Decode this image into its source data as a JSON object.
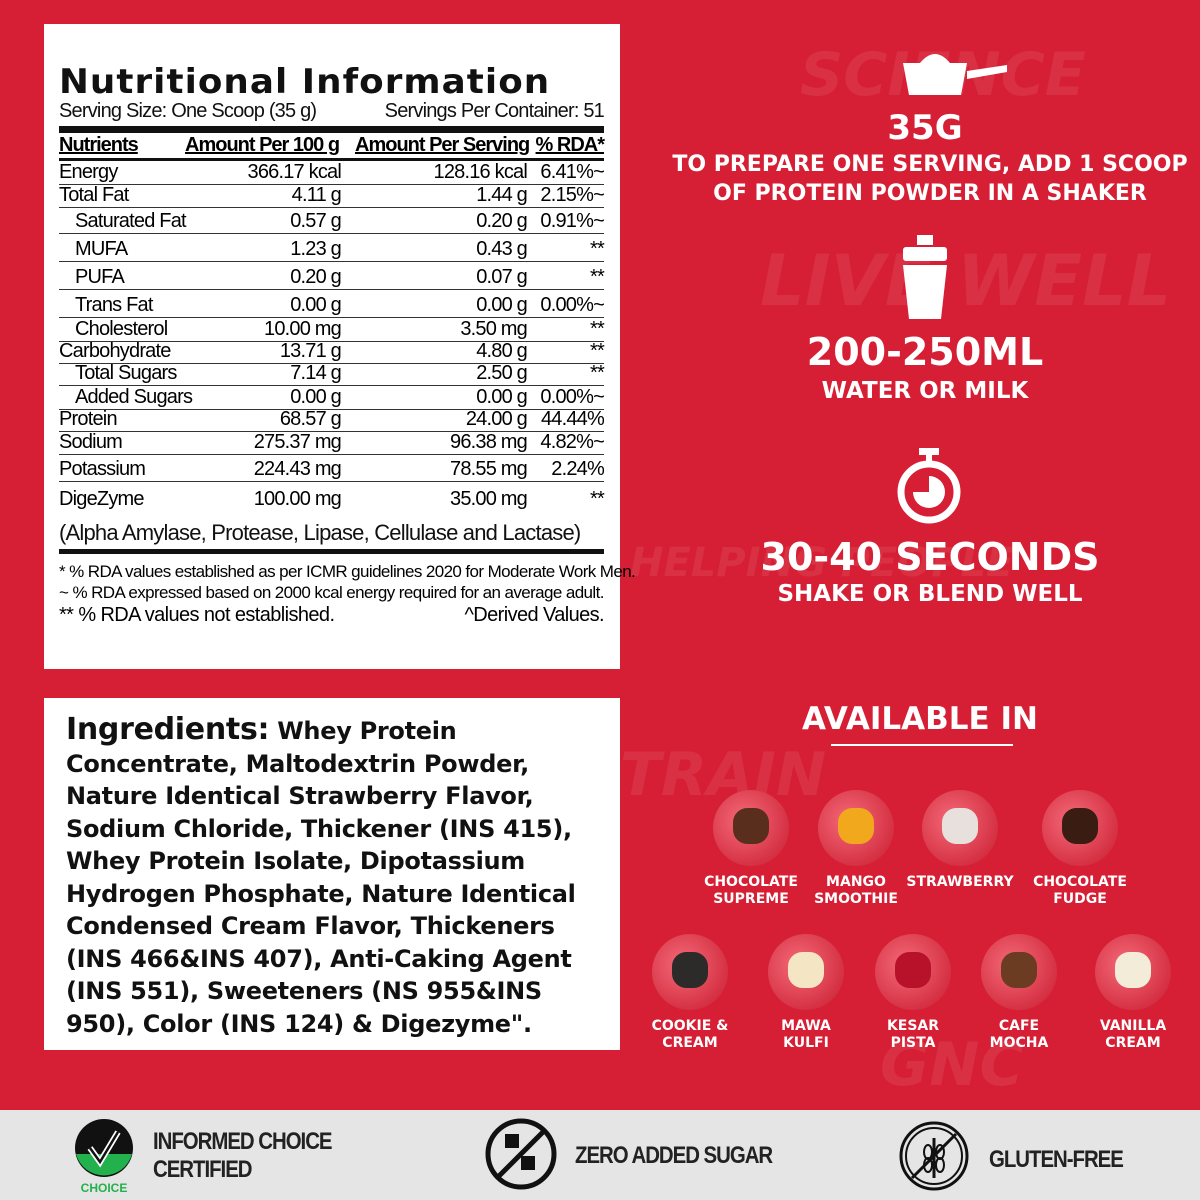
{
  "nutrition": {
    "title": "Nutritional Information",
    "serving_size": "Serving Size: One Scoop (35 g)",
    "servings_per_container": "Servings Per Container: 51",
    "headers": [
      "Nutrients",
      "Amount Per 100 g",
      "Amount Per Serving",
      "% RDA*"
    ],
    "rows": [
      {
        "name": "Energy",
        "per100": "366.17 kcal",
        "serving": "128.16 kcal",
        "rda": "6.41%~",
        "indent": false
      },
      {
        "name": "Total Fat",
        "per100": "4.11 g",
        "serving": "1.44 g",
        "rda": "2.15%~",
        "indent": false
      },
      {
        "name": "Saturated Fat",
        "per100": "0.57 g",
        "serving": "0.20 g",
        "rda": "0.91%~",
        "indent": true
      },
      {
        "name": "MUFA",
        "per100": "1.23 g",
        "serving": "0.43 g",
        "rda": "**",
        "indent": true
      },
      {
        "name": "PUFA",
        "per100": "0.20 g",
        "serving": "0.07 g",
        "rda": "**",
        "indent": true
      },
      {
        "name": "Trans Fat",
        "per100": "0.00 g",
        "serving": "0.00 g",
        "rda": "0.00%~",
        "indent": true
      },
      {
        "name": "Cholesterol",
        "per100": "10.00 mg",
        "serving": "3.50 mg",
        "rda": "**",
        "indent": true
      },
      {
        "name": "Carbohydrate",
        "per100": "13.71 g",
        "serving": "4.80 g",
        "rda": "**",
        "indent": false
      },
      {
        "name": "Total Sugars",
        "per100": "7.14 g",
        "serving": "2.50 g",
        "rda": "**",
        "indent": true
      },
      {
        "name": "Added Sugars",
        "per100": "0.00 g",
        "serving": "0.00 g",
        "rda": "0.00%~",
        "indent": true
      },
      {
        "name": "Protein",
        "per100": "68.57 g",
        "serving": "24.00 g",
        "rda": "44.44%",
        "indent": false
      },
      {
        "name": "Sodium",
        "per100": "275.37 mg",
        "serving": "96.38 mg",
        "rda": "4.82%~",
        "indent": false
      },
      {
        "name": "Potassium",
        "per100": "224.43 mg",
        "serving": "78.55 mg",
        "rda": "2.24%",
        "indent": false
      },
      {
        "name": "DigeZyme",
        "per100": "100.00 mg",
        "serving": "35.00 mg",
        "rda": "**",
        "indent": false
      }
    ],
    "digezyme_note": "(Alpha Amylase, Protease, Lipase, Cellulase and Lactase)",
    "footnotes": [
      "* % RDA values established as per ICMR guidelines 2020 for Moderate Work Men.",
      "~ % RDA expressed based on 2000 kcal energy required for an average adult.",
      "** % RDA values not established."
    ],
    "derived": "^Derived Values."
  },
  "ingredients": {
    "label": "Ingredients:",
    "text": " Whey Protein Concentrate, Maltodextrin Powder, Nature Identical Strawberry Flavor, Sodium Chloride, Thickener (INS 415), Whey Protein Isolate, Dipotassium Hydrogen Phosphate, Nature Identical Condensed Cream Flavor, Thickeners (INS 466&INS 407), Anti-Caking Agent (INS 551), Sweeteners (NS 955&INS 950), Color (INS 124) & Digezyme\"."
  },
  "steps": [
    {
      "icon": "scoop-icon",
      "title": "35G",
      "text": "TO PREPARE ONE SERVING, ADD 1 SCOOP\nOF PROTEIN POWDER IN A SHAKER"
    },
    {
      "icon": "shaker-icon",
      "title": "200-250ML",
      "text": "WATER OR MILK"
    },
    {
      "icon": "stopwatch-icon",
      "title": "30-40 SECONDS",
      "text": "SHAKE OR BLEND WELL"
    }
  ],
  "available": {
    "heading": "AVAILABLE IN",
    "flavors": [
      {
        "name": "CHOCOLATE\nSUPREME",
        "color": "#5a2e1c"
      },
      {
        "name": "MANGO\nSMOOTHIE",
        "color": "#f2a81d"
      },
      {
        "name": "STRAWBERRY",
        "color": "#e8e0dc"
      },
      {
        "name": "CHOCOLATE\nFUDGE",
        "color": "#3b1c12"
      },
      {
        "name": "COOKIE &\nCREAM",
        "color": "#2d2a2a"
      },
      {
        "name": "MAWA\nKULFI",
        "color": "#f4e6c4"
      },
      {
        "name": "KESAR\nPISTA",
        "color": "#b8122a"
      },
      {
        "name": "CAFE\nMOCHA",
        "color": "#6b3b22"
      },
      {
        "name": "VANILLA\nCREAM",
        "color": "#f3ecd8"
      }
    ]
  },
  "badges": [
    {
      "icon": "informed-choice-icon",
      "label": "INFORMED CHOICE\nCERTIFIED",
      "logo_text": "INFORMED",
      "logo_sub": "CHOICE"
    },
    {
      "icon": "no-sugar-icon",
      "label": "ZERO ADDED SUGAR"
    },
    {
      "icon": "gluten-free-icon",
      "label": "GLUTEN-FREE"
    }
  ],
  "colors": {
    "background": "#d61f34",
    "bottom_bar": "#e5e5e5",
    "logo_green": "#22b14c"
  }
}
